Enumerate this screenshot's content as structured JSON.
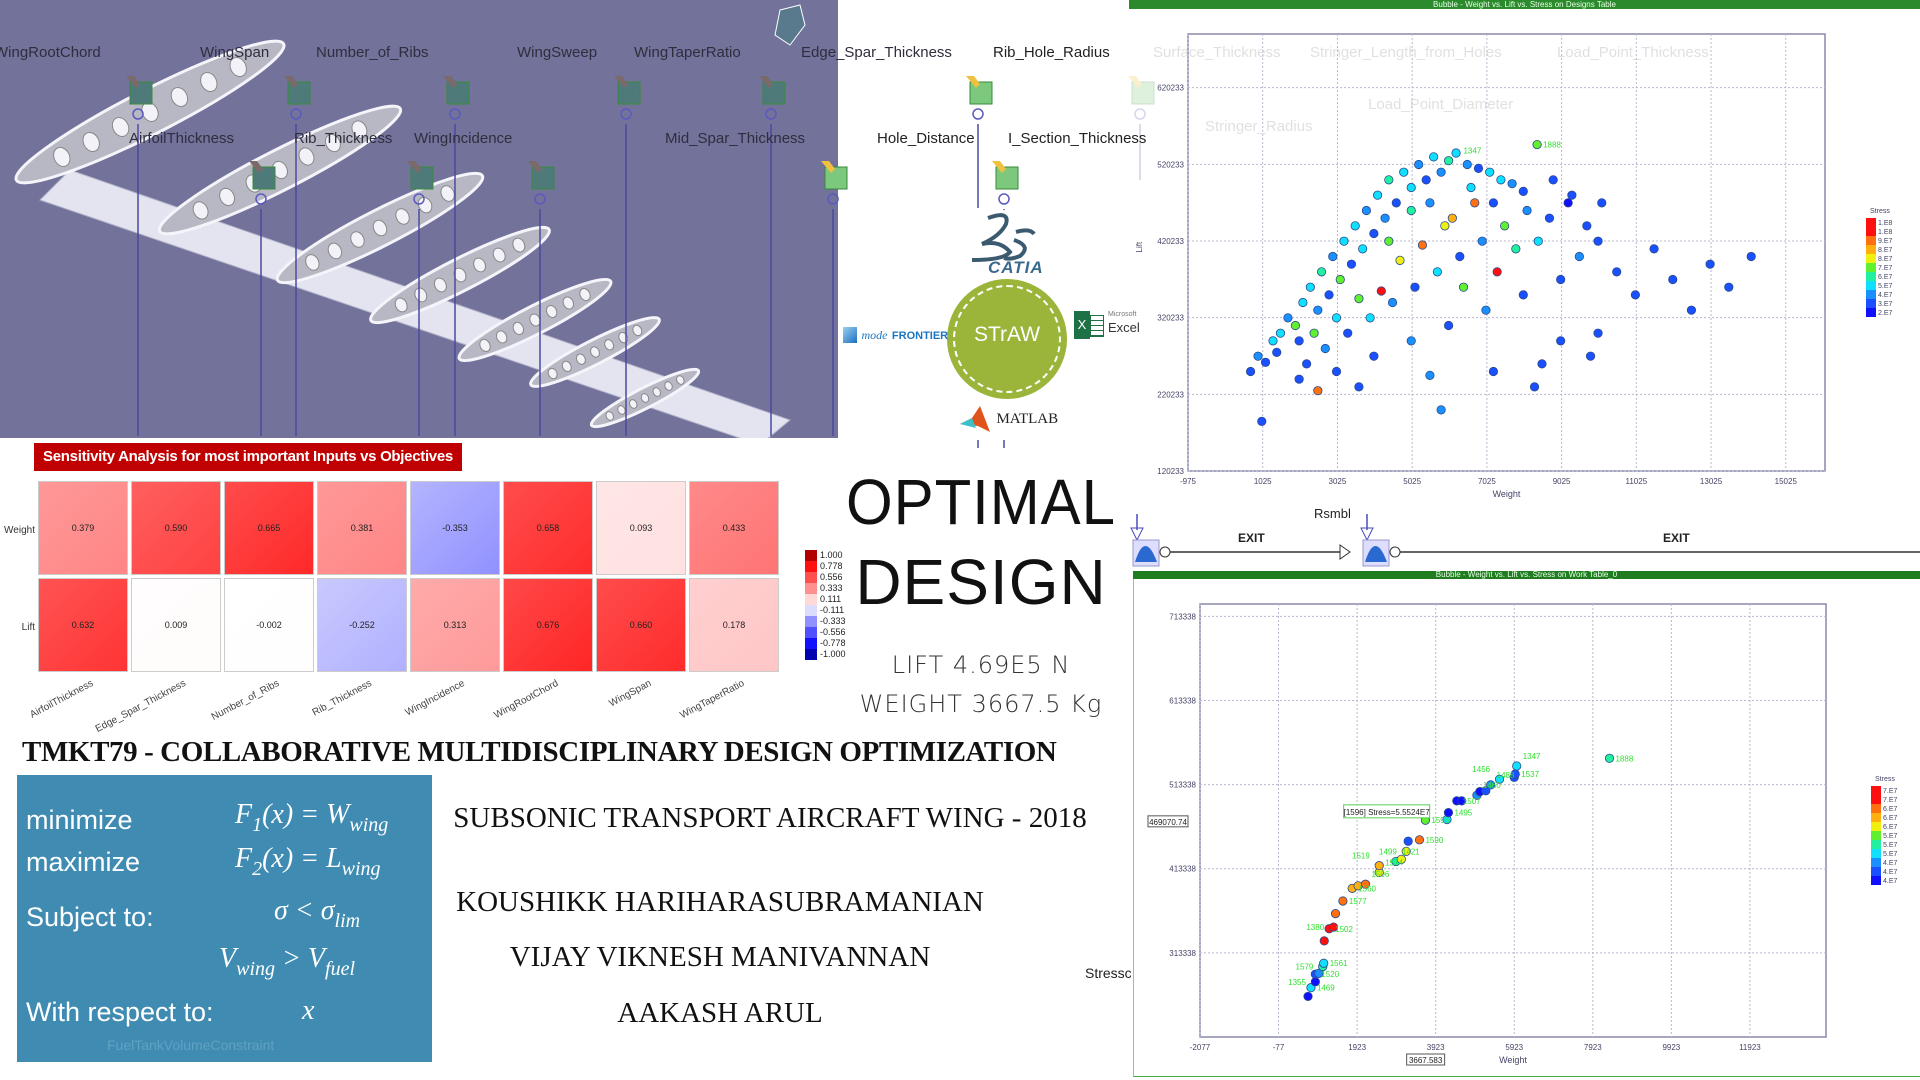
{
  "cad": {
    "labels": [
      "WingRootChord",
      "WingSpan",
      "Number_of_Ribs",
      "WingSweep",
      "WingTaperRatio",
      "Edge_Spar_Thickness",
      "Rib_Hole_Radius",
      "AirfoilThickness",
      "Rib_Thickness",
      "WingIncidence",
      "Mid_Spar_Thickness",
      "Hole_Distance",
      "I_Section_Thickness"
    ],
    "bg_color": "#72729a",
    "node_icon": "input-variable-node-icon"
  },
  "faded_labels": [
    "Surface_Thickness",
    "Stringer_Length_from_Holes",
    "Load_Point_Thickness",
    "Load_Point_Diameter",
    "Stringer_Radius",
    "FuelTankVolumeConstraint"
  ],
  "sensitivity": {
    "title": "Sensitivity Analysis for most important Inputs vs Objectives",
    "rows": [
      "Weight",
      "Lift"
    ],
    "cols": [
      "AirfoilThickness",
      "Edge_Spar_Thickness",
      "Number_of_Ribs",
      "Rib_Thickness",
      "WingIncidence",
      "WingRootChord",
      "WingSpan",
      "WingTaperRatio"
    ],
    "values": [
      [
        "0.379",
        "0.590",
        "0.665",
        "0.381",
        "-0.353",
        "0.658",
        "0.093",
        "0.433"
      ],
      [
        "0.632",
        "0.009",
        "-0.002",
        "-0.252",
        "0.313",
        "0.676",
        "0.660",
        "0.178"
      ]
    ],
    "legend": [
      "1.000",
      "0.778",
      "0.556",
      "0.333",
      "0.111",
      "-0.111",
      "-0.333",
      "-0.556",
      "-0.778",
      "-1.000"
    ],
    "legend_colors": [
      "#b00000",
      "#ff1010",
      "#ff5050",
      "#ff9090",
      "#ffd8d8",
      "#dcdcff",
      "#9090ff",
      "#5050ff",
      "#1010ff",
      "#0000b0"
    ],
    "banner_color": "#c00000"
  },
  "logos": {
    "catia": "CATIA",
    "straw": "STrAW",
    "modefrontier_a": "mode",
    "modefrontier_b": "FRONTIER",
    "excel_small": "Microsoft",
    "excel": "Excel",
    "matlab": "MATLAB",
    "straw_color": "#9ab53a"
  },
  "headline": {
    "line1": "OPTIMAL",
    "line2": "DESIGN",
    "lift": "LIFT 4.69E5 N",
    "weight": "WEIGHT 3667.5 Kg"
  },
  "title": "TMKT79 - COLLABORATIVE MULTIDISCIPLINARY DESIGN OPTIMIZATION",
  "subtitle": "SUBSONIC TRANSPORT AIRCRAFT WING - 2018",
  "authors": [
    "KOUSHIKK HARIHARASUBRAMANIAN",
    "VIJAY VIKNESH MANIVANNAN",
    "AAKASH ARUL"
  ],
  "formulation": {
    "minimize": "minimize",
    "maximize": "maximize",
    "subject_to": "Subject to:",
    "with_respect_to": "With respect to:",
    "f1": {
      "a": "F",
      "a_sub": "1",
      "b": "(x) = W",
      "b_sub": "wing"
    },
    "f2": {
      "a": "F",
      "a_sub": "2",
      "b": "(x) = L",
      "b_sub": "wing"
    },
    "c1": {
      "a": "σ < σ",
      "a_sub": "lim"
    },
    "c2": {
      "a": "V",
      "a_sub": "wing",
      "b": " > V",
      "b_sub": "fuel"
    },
    "x": "x",
    "box_color": "#3f8bb2"
  },
  "workflow": {
    "rsmbl": "Rsmbl",
    "exit1": "EXIT",
    "exit2": "EXIT",
    "stress_node": "Stressc"
  },
  "chart_data": [
    {
      "type": "scatter",
      "title": "Bubble - Weight vs. Lift vs. Stress on Designs Table",
      "xlabel": "Weight",
      "ylabel": "Lift",
      "xlim": [
        -975,
        16075
      ],
      "ylim": [
        120233,
        690233
      ],
      "xticks": [
        "-975",
        "1025",
        "3025",
        "5025",
        "7025",
        "9025",
        "11025",
        "13025",
        "15025"
      ],
      "yticks": [
        "120233",
        "220233",
        "320233",
        "420233",
        "520233",
        "620233"
      ],
      "grid": true,
      "colorbar": {
        "title": "Stress",
        "labels": [
          "1.E8",
          "1.E8",
          "9.E7",
          "8.E7",
          "8.E7",
          "7.E7",
          "6.E7",
          "5.E7",
          "4.E7",
          "3.E7",
          "2.E7"
        ],
        "range_e7": [
          2,
          10
        ]
      },
      "point_labels": [
        {
          "label": "1888",
          "w": 8369,
          "l": 546000
        },
        {
          "label": "1347",
          "w": 6238,
          "l": 538000
        }
      ],
      "points": [
        [
          700,
          250000,
          3
        ],
        [
          900,
          270000,
          4
        ],
        [
          1100,
          262000,
          3.5
        ],
        [
          1300,
          290000,
          4.5
        ],
        [
          1500,
          300000,
          5
        ],
        [
          1400,
          275000,
          3
        ],
        [
          1700,
          320000,
          4
        ],
        [
          1900,
          310000,
          6
        ],
        [
          2100,
          340000,
          4.5
        ],
        [
          2000,
          290000,
          3
        ],
        [
          2300,
          360000,
          5
        ],
        [
          2500,
          330000,
          4
        ],
        [
          2600,
          380000,
          5.5
        ],
        [
          2800,
          350000,
          3.5
        ],
        [
          2900,
          400000,
          4
        ],
        [
          3100,
          370000,
          6
        ],
        [
          3200,
          420000,
          5
        ],
        [
          3400,
          390000,
          3
        ],
        [
          3500,
          440000,
          4.5
        ],
        [
          3700,
          410000,
          5
        ],
        [
          3800,
          460000,
          4
        ],
        [
          4000,
          430000,
          3.5
        ],
        [
          4100,
          480000,
          5
        ],
        [
          4300,
          450000,
          4
        ],
        [
          4400,
          500000,
          5.5
        ],
        [
          4600,
          470000,
          3
        ],
        [
          4800,
          510000,
          4.5
        ],
        [
          5000,
          490000,
          5
        ],
        [
          5200,
          520000,
          4
        ],
        [
          5400,
          500000,
          3.5
        ],
        [
          5600,
          530000,
          5
        ],
        [
          5800,
          510000,
          4
        ],
        [
          6000,
          525000,
          5.5
        ],
        [
          6200,
          535000,
          5
        ],
        [
          6500,
          520000,
          4
        ],
        [
          6800,
          515000,
          3.5
        ],
        [
          7100,
          510000,
          4.5
        ],
        [
          7400,
          500000,
          5
        ],
        [
          7700,
          495000,
          4
        ],
        [
          8000,
          485000,
          3
        ],
        [
          8369,
          546000,
          6
        ],
        [
          2200,
          260000,
          3
        ],
        [
          2700,
          280000,
          4
        ],
        [
          3300,
          300000,
          3.5
        ],
        [
          3900,
          320000,
          5
        ],
        [
          4500,
          340000,
          4
        ],
        [
          5100,
          360000,
          3
        ],
        [
          5700,
          380000,
          4.5
        ],
        [
          6300,
          400000,
          3.5
        ],
        [
          6900,
          420000,
          4
        ],
        [
          7500,
          440000,
          6.5
        ],
        [
          8100,
          460000,
          4
        ],
        [
          8700,
          450000,
          3
        ],
        [
          3000,
          250000,
          3.5
        ],
        [
          4000,
          270000,
          3
        ],
        [
          5000,
          290000,
          4
        ],
        [
          6000,
          310000,
          3.5
        ],
        [
          7000,
          330000,
          4
        ],
        [
          8000,
          350000,
          3
        ],
        [
          9000,
          370000,
          3.5
        ],
        [
          9500,
          400000,
          4
        ],
        [
          10000,
          420000,
          3
        ],
        [
          10500,
          380000,
          3.5
        ],
        [
          11000,
          350000,
          3
        ],
        [
          11500,
          410000,
          3.5
        ],
        [
          12000,
          370000,
          3
        ],
        [
          12500,
          330000,
          3.5
        ],
        [
          13000,
          390000,
          3
        ],
        [
          13500,
          360000,
          3
        ],
        [
          14100,
          400000,
          3
        ],
        [
          9000,
          290000,
          3
        ],
        [
          10000,
          300000,
          3.5
        ],
        [
          8500,
          260000,
          3
        ],
        [
          9800,
          270000,
          3
        ],
        [
          7200,
          250000,
          3.5
        ],
        [
          5500,
          245000,
          4
        ],
        [
          2000,
          240000,
          3
        ],
        [
          3600,
          230000,
          3.5
        ],
        [
          1000,
          185000,
          3
        ],
        [
          2500,
          225000,
          9
        ],
        [
          4200,
          355000,
          9.5
        ],
        [
          5300,
          415000,
          8.5
        ],
        [
          6100,
          450000,
          8
        ],
        [
          6700,
          470000,
          9
        ],
        [
          7300,
          380000,
          10
        ],
        [
          4700,
          395000,
          7
        ],
        [
          3600,
          345000,
          6.5
        ],
        [
          5900,
          440000,
          7.5
        ],
        [
          6400,
          360000,
          6
        ],
        [
          7800,
          410000,
          5.5
        ],
        [
          8400,
          420000,
          4.5
        ],
        [
          2400,
          300000,
          6
        ],
        [
          3000,
          320000,
          5
        ],
        [
          4400,
          420000,
          6
        ],
        [
          5000,
          460000,
          5.5
        ],
        [
          5500,
          470000,
          4
        ],
        [
          6600,
          490000,
          4.5
        ],
        [
          7200,
          470000,
          3.5
        ],
        [
          8800,
          500000,
          3
        ],
        [
          9300,
          480000,
          3.5
        ],
        [
          10100,
          470000,
          3
        ],
        [
          9700,
          440000,
          3
        ],
        [
          8300,
          230000,
          3.5
        ],
        [
          9200,
          470000,
          2.5
        ],
        [
          5800,
          200000,
          4
        ]
      ]
    },
    {
      "type": "scatter",
      "title": "Bubble - Weight vs. Lift vs. Stress on Work Table_0",
      "xlabel": "Weight",
      "xlim": [
        -2077,
        13860
      ],
      "ylim": [
        213338,
        728000
      ],
      "xticks": [
        "-2077",
        "-77",
        "1923",
        "3923",
        "5923",
        "7923",
        "9923",
        "11923"
      ],
      "yticks": [
        "313338",
        "413338",
        "513338",
        "613338",
        "713338"
      ],
      "grid": true,
      "x_marker": "3667.583",
      "y_marker": "469070.74",
      "tooltip": "[1596] Stress=5.5524E7",
      "colorbar": {
        "title": "Stress",
        "labels": [
          "7.E7",
          "7.E7",
          "6.E7",
          "6.E7",
          "6.E7",
          "5.E7",
          "5.E7",
          "5.E7",
          "4.E7",
          "4.E7",
          "4.E7"
        ],
        "range_e7": [
          4,
          7
        ]
      },
      "points": [
        [
          673,
          261560,
          4.3,
          ""
        ],
        [
          748,
          272000,
          5.1,
          "1469"
        ],
        [
          860,
          279000,
          4.0,
          "1355"
        ],
        [
          860,
          288000,
          4.6,
          "1520"
        ],
        [
          948,
          289000,
          4.7,
          ""
        ],
        [
          1048,
          297000,
          5.2,
          "1579"
        ],
        [
          1073,
          301000,
          4.9,
          "1561"
        ],
        [
          1086,
          327560,
          7.0,
          ""
        ],
        [
          1211,
          342000,
          7.0,
          "1502"
        ],
        [
          1323,
          344000,
          6.8,
          "1380"
        ],
        [
          1373,
          360000,
          6.5,
          ""
        ],
        [
          1561,
          375000,
          6.5,
          "1577"
        ],
        [
          1798,
          390000,
          6.2,
          "1560"
        ],
        [
          1948,
          393000,
          6.3,
          ""
        ],
        [
          2136,
          395000,
          6.5,
          "1506"
        ],
        [
          2486,
          409000,
          6.0,
          "1574"
        ],
        [
          2486,
          417000,
          6.2,
          "1519"
        ],
        [
          2911,
          422000,
          5.2,
          "1421"
        ],
        [
          3048,
          424500,
          6.0,
          ""
        ],
        [
          3173,
          434000,
          5.9,
          "1499"
        ],
        [
          3223,
          446000,
          4.5,
          ""
        ],
        [
          3511,
          447700,
          6.6,
          "1590"
        ],
        [
          3661,
          471000,
          5.55,
          "1596"
        ],
        [
          4211,
          471800,
          5.0,
          ""
        ],
        [
          4248,
          480000,
          4.0,
          "1495"
        ],
        [
          4461,
          494000,
          4.2,
          "1507"
        ],
        [
          4586,
          494000,
          4.1,
          ""
        ],
        [
          4973,
          500700,
          4.8,
          "1460"
        ],
        [
          5048,
          505000,
          4.3,
          ""
        ],
        [
          5198,
          506000,
          4.6,
          ""
        ],
        [
          5323,
          513000,
          4.7,
          "1488"
        ],
        [
          5548,
          519700,
          5.0,
          "1456"
        ],
        [
          5923,
          522000,
          4.5,
          ""
        ],
        [
          5948,
          526000,
          4.6,
          "1537"
        ],
        [
          5986,
          535500,
          5.1,
          "1347"
        ],
        [
          8348,
          544600,
          5.4,
          "1888"
        ]
      ]
    }
  ]
}
